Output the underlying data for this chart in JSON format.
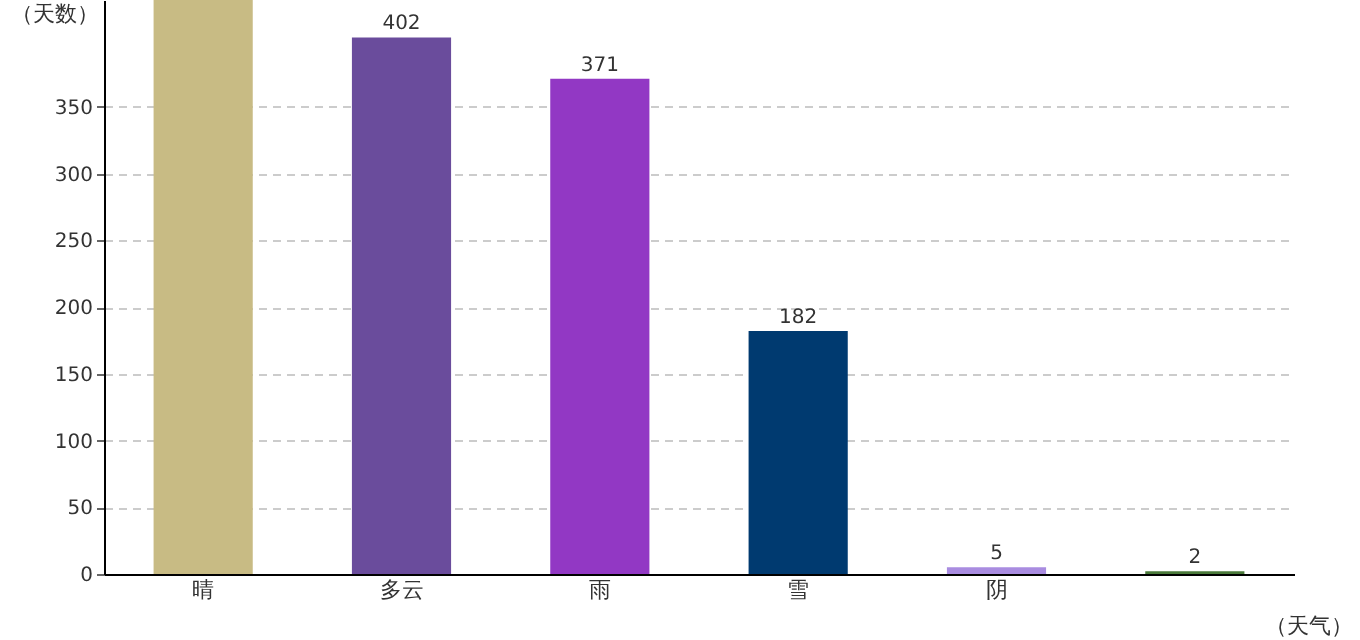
{
  "chart_data": {
    "type": "bar",
    "xlabel": "（天气）",
    "ylabel": "（天数）",
    "categories": [
      "晴",
      "多云",
      "雨",
      "雪",
      "阴",
      null
    ],
    "values": [
      430,
      402,
      371,
      182,
      5,
      2
    ],
    "colors": [
      "#c8bb84",
      "#6a4c9c",
      "#9238c4",
      "#003a70",
      "#a98ce0",
      "#4a7a3a"
    ],
    "value_labels": [
      null,
      "402",
      "371",
      "182",
      "5",
      "2"
    ],
    "ylim": [
      0,
      430
    ],
    "yticks": [
      0,
      50,
      100,
      150,
      200,
      250,
      300,
      350
    ],
    "grid": "y"
  }
}
